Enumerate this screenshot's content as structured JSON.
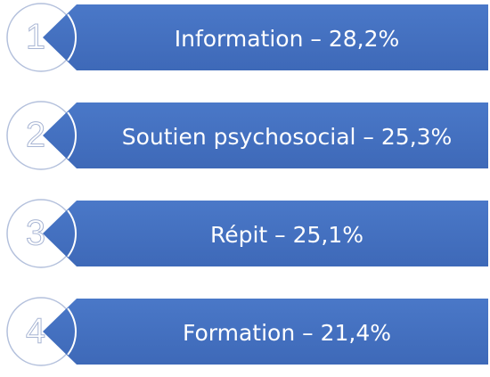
{
  "items": [
    {
      "number": "1",
      "label": "Information – 28,2%"
    },
    {
      "number": "2",
      "label": "Soutien psychosocial – 25,3%"
    },
    {
      "number": "3",
      "label": "Répit – 25,1%"
    },
    {
      "number": "4",
      "label": "Formation – 21,4%"
    }
  ]
}
